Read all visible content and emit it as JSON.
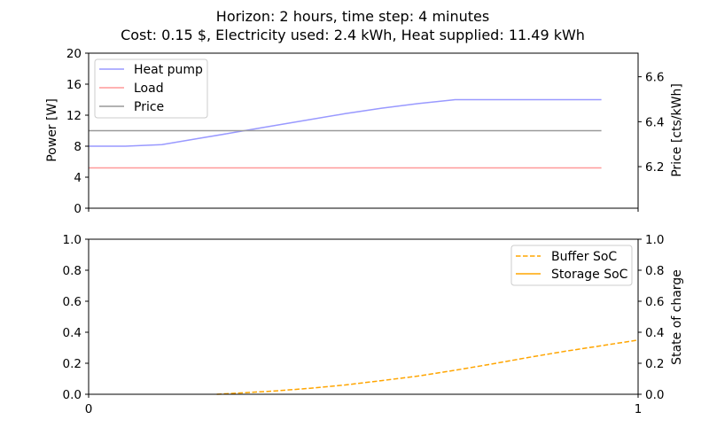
{
  "title": {
    "line1": "Horizon: 2 hours, time step: 4 minutes",
    "line2": "Cost: 0.15 $, Electricity used: 2.4 kWh, Heat supplied: 11.49 kWh"
  },
  "chart_data": [
    {
      "type": "line",
      "ylabel": "Power [W]",
      "ylabel_right": "Price [cts/kWh]",
      "ylim": [
        0,
        20
      ],
      "yticks": [
        0,
        4,
        8,
        12,
        16,
        20
      ],
      "ylim_right": [
        6.015,
        6.705
      ],
      "yticks_right": [
        6.2,
        6.4,
        6.6
      ],
      "xlim": [
        0,
        1
      ],
      "xticks_labels_shown": false,
      "legend": "upper-left",
      "grid": false,
      "series": [
        {
          "name": "Heat pump",
          "color": "#9999ff",
          "axis": "left",
          "style": "solid",
          "x": [
            0,
            0.0667,
            0.1333,
            0.2,
            0.2667,
            0.3333,
            0.4,
            0.4667,
            0.5333,
            0.6,
            0.6667,
            0.7333,
            0.8,
            0.8667,
            0.9333
          ],
          "y": [
            8.0,
            8.0,
            8.2,
            9.0,
            9.8,
            10.6,
            11.4,
            12.2,
            12.9,
            13.5,
            14.0,
            14.0,
            14.0,
            14.0,
            14.0
          ]
        },
        {
          "name": "Load",
          "color": "#ff9999",
          "axis": "left",
          "style": "solid",
          "x": [
            0,
            0.9333
          ],
          "y": [
            5.2,
            5.2
          ]
        },
        {
          "name": "Price",
          "color": "#999999",
          "axis": "right",
          "style": "solid",
          "x": [
            0,
            0.9333
          ],
          "y": [
            6.36,
            6.36
          ]
        }
      ]
    },
    {
      "type": "line",
      "ylabel_right": "State of charge",
      "ylim": [
        0,
        1
      ],
      "yticks": [
        "0.0",
        "0.2",
        "0.4",
        "0.6",
        "0.8",
        "1.0"
      ],
      "xlim": [
        0,
        1
      ],
      "xticks": [
        "0",
        "1"
      ],
      "legend": "upper-right",
      "grid": false,
      "series": [
        {
          "name": "Buffer SoC",
          "color": "#ffa500",
          "style": "dashed",
          "x": [
            0.2333,
            0.3333,
            0.4,
            0.4667,
            0.5333,
            0.6,
            0.6667,
            0.7333,
            0.8,
            0.8667,
            0.9333,
            1.0
          ],
          "y": [
            0.0,
            0.02,
            0.038,
            0.06,
            0.088,
            0.118,
            0.155,
            0.195,
            0.237,
            0.277,
            0.313,
            0.35
          ]
        },
        {
          "name": "Storage SoC",
          "color": "#ffa500",
          "style": "solid",
          "x": [],
          "y": []
        }
      ]
    }
  ]
}
